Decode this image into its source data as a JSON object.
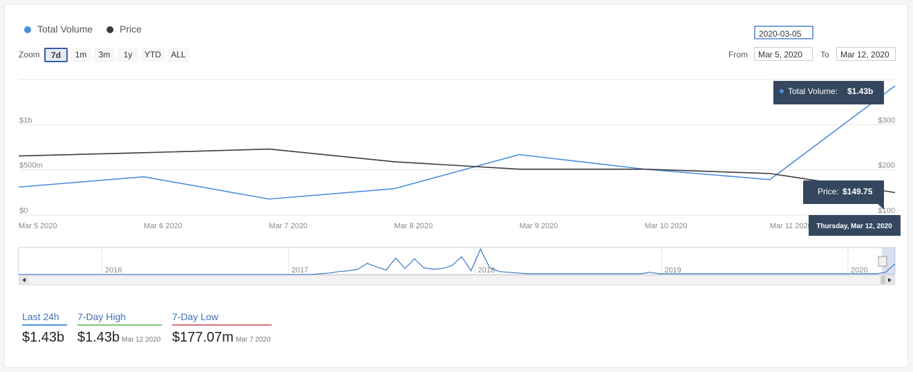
{
  "chart_data": {
    "type": "line",
    "categories": [
      "Mar 5 2020",
      "Mar 6 2020",
      "Mar 7 2020",
      "Mar 8 2020",
      "Mar 9 2020",
      "Mar 10 2020",
      "Mar 11 2020",
      null
    ],
    "series": [
      {
        "name": "Total Volume",
        "color": "#4a8edb",
        "values": [
          310000000,
          423000000,
          177070000,
          292000000,
          669000000,
          508000000,
          392000000,
          1430000000
        ]
      },
      {
        "name": "Price",
        "color": "#3c3c3c",
        "axis": "y2",
        "values": [
          230.8,
          238,
          246,
          218,
          201.5,
          201.5,
          192,
          149.75
        ]
      }
    ],
    "ylim": [
      0,
      1500000000
    ],
    "yticks": [
      {
        "value": 0,
        "label": "$0"
      },
      {
        "value": 500000000,
        "label": "$500m"
      },
      {
        "value": 1000000000,
        "label": "$1b"
      }
    ],
    "y2lim": [
      100,
      400
    ],
    "y2ticks": [
      {
        "value": 100,
        "label": "$100"
      },
      {
        "value": 200,
        "label": "$200"
      },
      {
        "value": 300,
        "label": "$300"
      }
    ],
    "grid": true
  },
  "zoom": {
    "label": "Zoom",
    "buttons": [
      "7d",
      "1m",
      "3m",
      "1y",
      "YTD",
      "ALL"
    ],
    "selected": 0
  },
  "date_input": "2020-03-05",
  "range": {
    "from_label": "From",
    "from": "Mar 5, 2020",
    "to_label": "To",
    "to": "Mar 12, 2020"
  },
  "tooltip": {
    "items": [
      {
        "label": "Total Volume:",
        "value": "$1.43b"
      },
      {
        "label": "Price:",
        "value": "$149.75"
      }
    ],
    "date": "Thursday, Mar 12, 2020"
  },
  "navigator": {
    "labels": [
      "2016",
      "2017",
      "2018",
      "2019",
      "2020"
    ],
    "ylim": [
      0,
      3600000000
    ],
    "values": [
      0,
      0,
      0,
      0,
      0,
      0,
      0,
      0,
      0,
      0,
      0,
      0,
      0,
      0,
      0,
      0,
      0,
      0,
      0,
      0,
      0,
      0,
      0,
      0,
      0,
      0,
      0,
      0,
      0,
      0,
      0,
      0,
      100000000.0,
      200000000.0,
      400000000.0,
      500000000.0,
      700000000.0,
      1500000000.0,
      1000000000.0,
      600000000.0,
      2200000000.0,
      800000000.0,
      2100000000.0,
      900000000.0,
      700000000.0,
      800000000.0,
      1200000000.0,
      2400000000.0,
      500000000.0,
      3400000000.0,
      900000000.0,
      400000000.0,
      300000000.0,
      200000000.0,
      100000000.0,
      100000000.0,
      100000000.0,
      100000000.0,
      100000000.0,
      100000000.0,
      100000000.0,
      100000000.0,
      100000000.0,
      100000000.0,
      100000000.0,
      100000000.0,
      100000000.0,
      300000000.0,
      100000000.0,
      100000000.0,
      100000000.0,
      100000000.0,
      100000000.0,
      100000000.0,
      100000000.0,
      100000000.0,
      100000000.0,
      100000000.0,
      100000000.0,
      100000000.0,
      100000000.0,
      100000000.0,
      100000000.0,
      100000000.0,
      100000000.0,
      100000000.0,
      100000000.0,
      100000000.0,
      100000000.0,
      100000000.0,
      100000000.0,
      100000000.0,
      300000000.0,
      1430000000.0
    ]
  },
  "stats": [
    {
      "label": "Last 24h",
      "value": "$1.43b",
      "color": "#4a8edb"
    },
    {
      "label": "7-Day High",
      "value": "$1.43b",
      "date": "Mar 12 2020",
      "color": "#7fc97a"
    },
    {
      "label": "7-Day Low",
      "value": "$177.07m",
      "date": "Mar 7 2020",
      "color": "#d9707a"
    }
  ]
}
